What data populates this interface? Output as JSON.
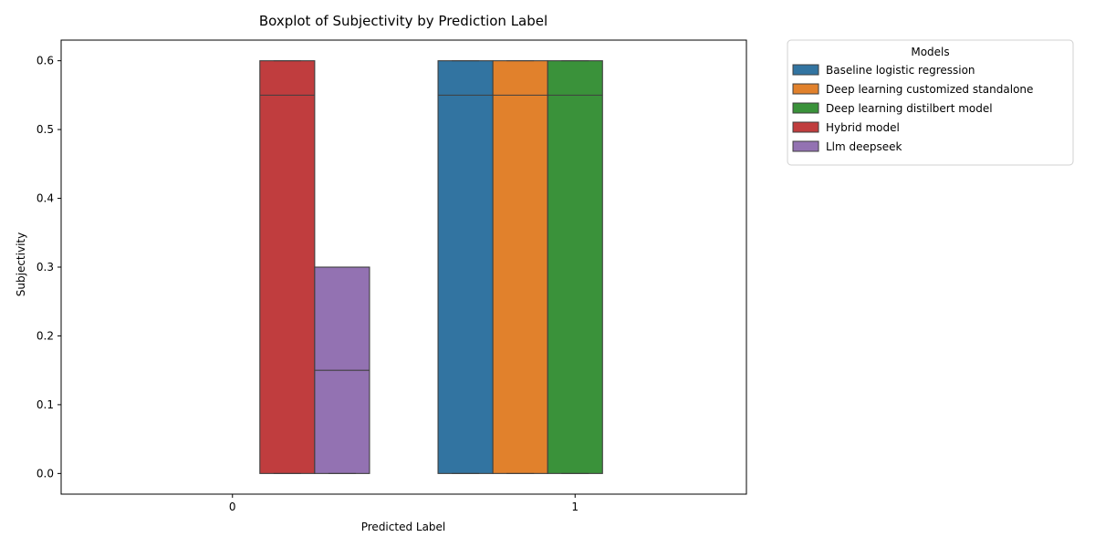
{
  "chart_data": {
    "type": "box",
    "title": "Boxplot of Subjectivity by Prediction Label",
    "xlabel": "Predicted Label",
    "ylabel": "Subjectivity",
    "categories": [
      "0",
      "1"
    ],
    "ylim": [
      -0.03,
      0.63
    ],
    "yticks": [
      0.0,
      0.1,
      0.2,
      0.3,
      0.4,
      0.5,
      0.6
    ],
    "ytick_labels": [
      "0.0",
      "0.1",
      "0.2",
      "0.3",
      "0.4",
      "0.5",
      "0.6"
    ],
    "legend": {
      "title": "Models",
      "placement": "outside-right",
      "entries": [
        "Baseline logistic regression",
        "Deep learning customized standalone",
        "Deep learning distilbert model",
        "Hybrid model",
        "Llm deepseek"
      ]
    },
    "series": [
      {
        "name": "Baseline logistic regression",
        "color": "#3274a1",
        "boxes": [
          null,
          {
            "min": 0.0,
            "q1": 0.0,
            "median": 0.55,
            "q3": 0.6,
            "max": 0.6
          }
        ]
      },
      {
        "name": "Deep learning customized standalone",
        "color": "#e1812c",
        "boxes": [
          null,
          {
            "min": 0.0,
            "q1": 0.0,
            "median": 0.55,
            "q3": 0.6,
            "max": 0.6
          }
        ]
      },
      {
        "name": "Deep learning distilbert model",
        "color": "#3a923a",
        "boxes": [
          null,
          {
            "min": 0.0,
            "q1": 0.0,
            "median": 0.55,
            "q3": 0.6,
            "max": 0.6
          }
        ]
      },
      {
        "name": "Hybrid model",
        "color": "#c03d3e",
        "boxes": [
          {
            "min": 0.0,
            "q1": 0.0,
            "median": 0.55,
            "q3": 0.6,
            "max": 0.6
          },
          null
        ]
      },
      {
        "name": "Llm deepseek",
        "color": "#9372b2",
        "boxes": [
          {
            "min": 0.0,
            "q1": 0.0,
            "median": 0.15,
            "q3": 0.3,
            "max": 0.3
          },
          null
        ]
      }
    ]
  }
}
